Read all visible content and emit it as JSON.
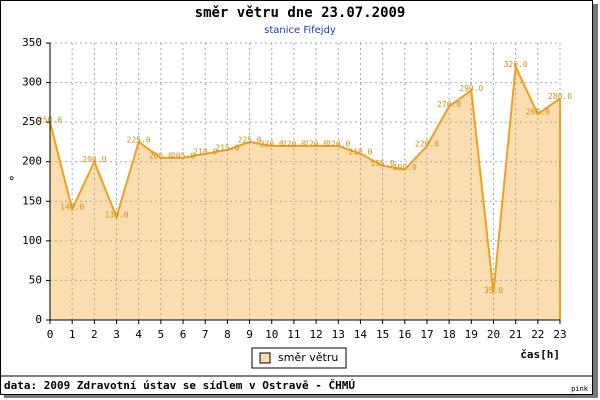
{
  "chart_data": {
    "type": "area",
    "title": "směr větru dne 23.07.2009",
    "subtitle": "stanice Fifejdy",
    "y_label": "°",
    "x_label": "čas[h]",
    "x": [
      0,
      1,
      2,
      3,
      4,
      5,
      6,
      7,
      8,
      9,
      10,
      11,
      12,
      13,
      14,
      15,
      16,
      17,
      18,
      19,
      20,
      21,
      22,
      23
    ],
    "xlim": [
      0,
      23
    ],
    "xticks": [
      0,
      1,
      2,
      3,
      4,
      5,
      6,
      7,
      8,
      9,
      10,
      11,
      12,
      13,
      14,
      15,
      16,
      17,
      18,
      19,
      20,
      21,
      22,
      23
    ],
    "ylim": [
      0,
      350
    ],
    "yticks": [
      0,
      50,
      100,
      150,
      200,
      250,
      300,
      350
    ],
    "grid": true,
    "series": [
      {
        "name": "směr větru",
        "color": "#f0a020",
        "values": [
          250,
          140,
          200,
          130,
          225,
          205,
          205,
          210,
          215,
          225,
          220,
          220,
          220,
          220,
          210,
          195,
          190,
          220,
          270,
          290,
          35,
          320,
          260,
          280
        ],
        "value_labels": [
          "250.0",
          "140.0",
          "200.0",
          "130.0",
          "225.0",
          "205.0",
          "205.0",
          "210.0",
          "215.0",
          "225.0",
          "220.0",
          "220.0",
          "220.0",
          "220.0",
          "210.0",
          "195.0",
          "190.0",
          "220.0",
          "270.0",
          "290.0",
          "35.0",
          "320.0",
          "260.0",
          "280.0"
        ]
      }
    ],
    "footer": "data: 2009 Zdravotní ústav se sídlem v Ostravě - ČHMÚ",
    "credit": "pink"
  }
}
